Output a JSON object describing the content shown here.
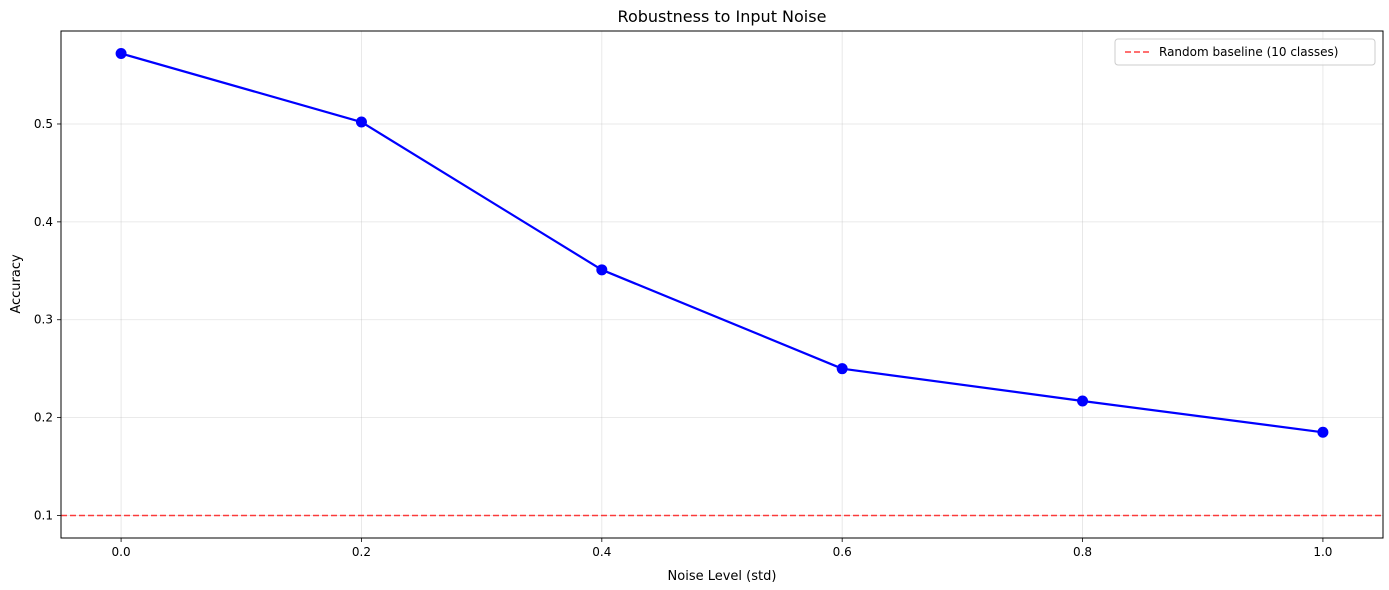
{
  "chart_data": {
    "type": "line",
    "title": "Robustness to Input Noise",
    "xlabel": "Noise Level (std)",
    "ylabel": "Accuracy",
    "xlim": [
      -0.05,
      1.05
    ],
    "ylim": [
      0.077,
      0.595
    ],
    "xticks": [
      "0.0",
      "0.2",
      "0.4",
      "0.6",
      "0.8",
      "1.0"
    ],
    "yticks": [
      "0.1",
      "0.2",
      "0.3",
      "0.4",
      "0.5"
    ],
    "grid": true,
    "legend_position": "top-right",
    "series": [
      {
        "name": "",
        "color": "#0000ff",
        "marker": "circle",
        "x": [
          0.0,
          0.2,
          0.4,
          0.6,
          0.8,
          1.0
        ],
        "y": [
          0.572,
          0.502,
          0.351,
          0.25,
          0.217,
          0.185
        ]
      }
    ],
    "reference_lines": [
      {
        "name": "Random baseline (10 classes)",
        "orientation": "horizontal",
        "y": 0.1,
        "color": "#ff0000",
        "style": "dashed"
      }
    ]
  }
}
